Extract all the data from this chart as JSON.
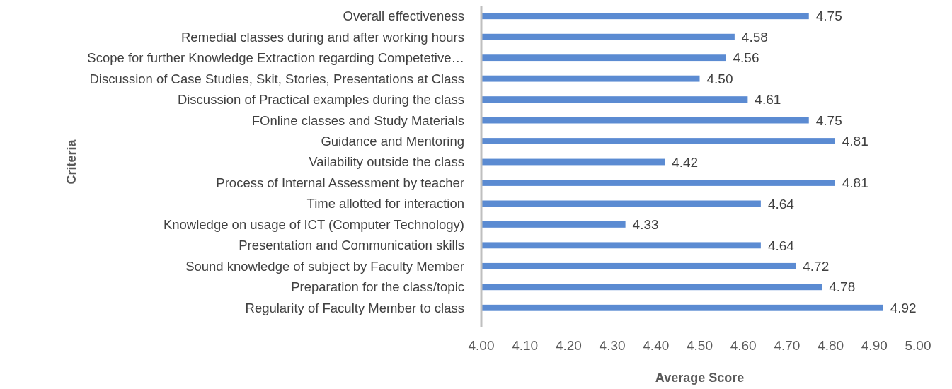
{
  "chart_data": {
    "type": "bar",
    "orientation": "horizontal",
    "xlabel": "Average Score",
    "ylabel": "Criteria",
    "categories": [
      "Overall effectiveness",
      "Remedial classes during and after working hours",
      "Scope for further Knowledge Extraction regarding Competetive…",
      "Discussion of Case Studies, Skit, Stories, Presentations at Class",
      "Discussion of Practical examples during the class",
      "FOnline classes and Study Materials",
      "Guidance and Mentoring",
      "Vailability outside the class",
      "Process of Internal Assessment by teacher",
      "Time allotted for interaction",
      "Knowledge on usage of ICT (Computer Technology)",
      "Presentation and Communication skills",
      "Sound knowledge of subject by Faculty Member",
      "Preparation for the class/topic",
      "Regularity of Faculty Member to class"
    ],
    "values": [
      4.75,
      4.58,
      4.56,
      4.5,
      4.61,
      4.75,
      4.81,
      4.42,
      4.81,
      4.64,
      4.33,
      4.64,
      4.72,
      4.78,
      4.92
    ],
    "value_labels": [
      "4.75",
      "4.58",
      "4.56",
      "4.50",
      "4.61",
      "4.75",
      "4.81",
      "4.42",
      "4.81",
      "4.64",
      "4.33",
      "4.64",
      "4.72",
      "4.78",
      "4.92"
    ],
    "color": "#5b8bd2",
    "xlim": [
      4,
      5
    ],
    "xticks": [
      {
        "value": 4,
        "label": "4.00"
      },
      {
        "value": 4.1,
        "label": "4.10"
      },
      {
        "value": 4.2,
        "label": "4.20"
      },
      {
        "value": 4.3,
        "label": "4.30"
      },
      {
        "value": 4.4,
        "label": "4.40"
      },
      {
        "value": 4.5,
        "label": "4.50"
      },
      {
        "value": 4.6,
        "label": "4.60"
      },
      {
        "value": 4.7,
        "label": "4.70"
      },
      {
        "value": 4.8,
        "label": "4.80"
      },
      {
        "value": 4.9,
        "label": "4.90"
      },
      {
        "value": 5,
        "label": "5.00"
      }
    ],
    "grid": false
  }
}
